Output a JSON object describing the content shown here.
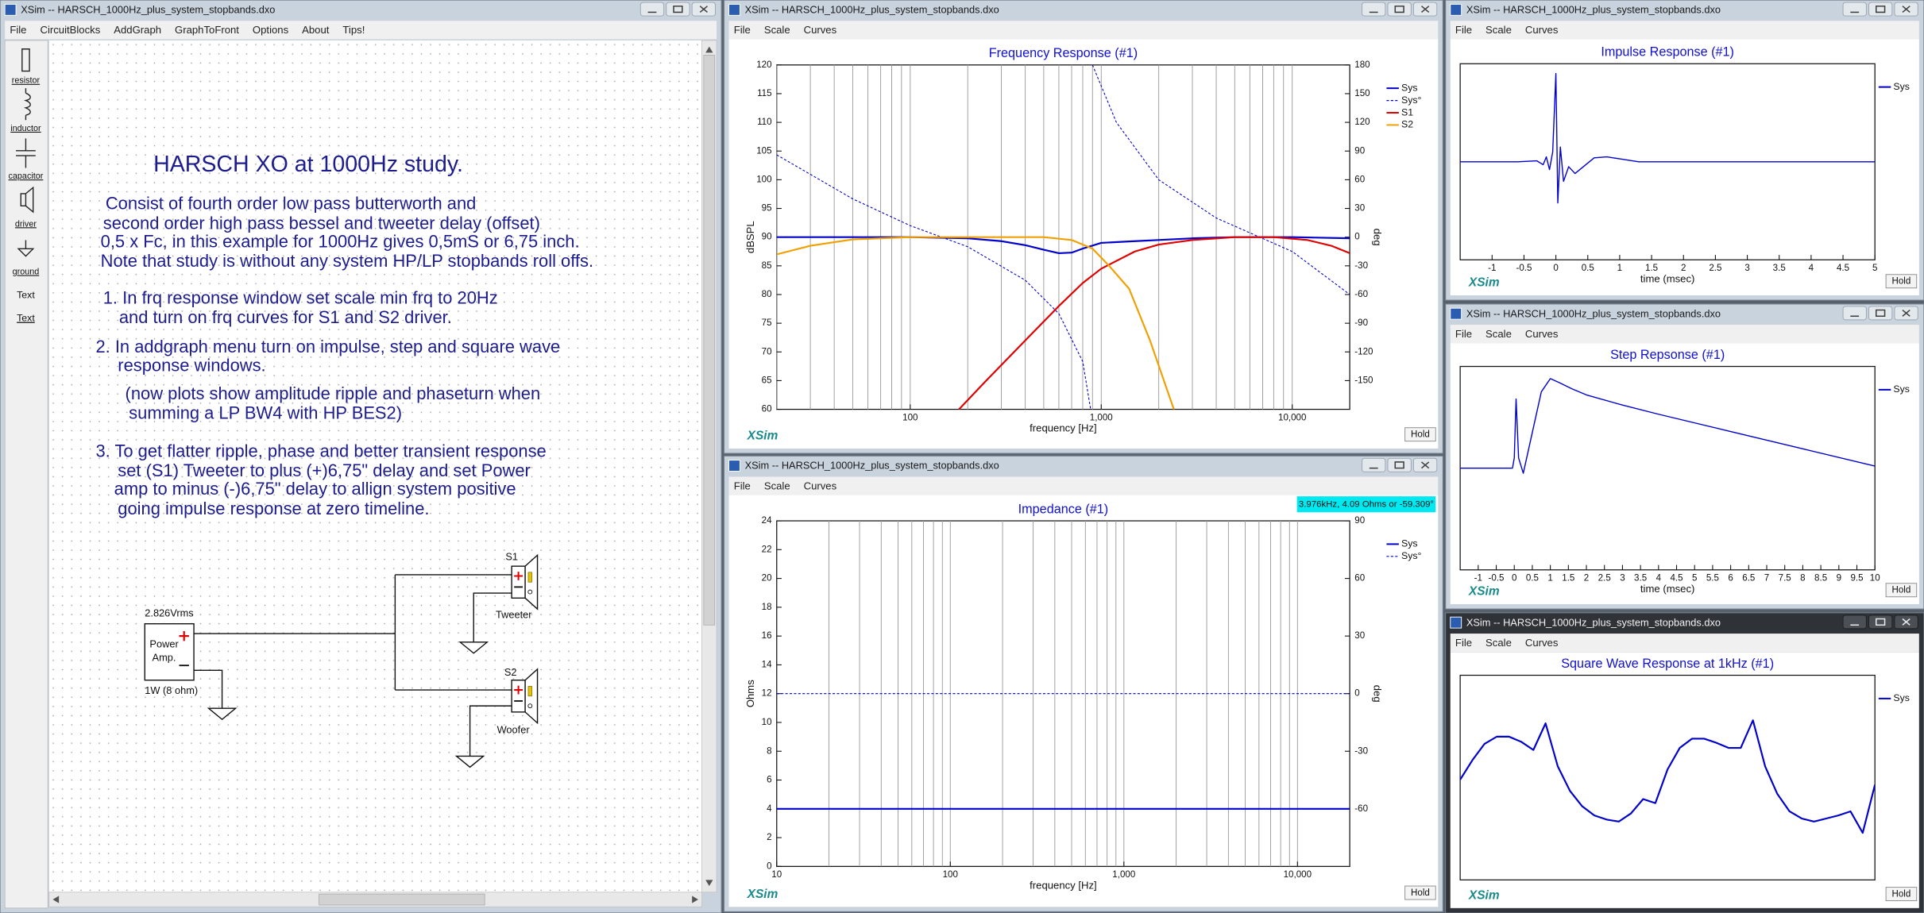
{
  "editor": {
    "title": "XSim -- HARSCH_1000Hz_plus_system_stopbands.dxo",
    "menu": [
      "File",
      "CircuitBlocks",
      "AddGraph",
      "GraphToFront",
      "Options",
      "About",
      "Tips!"
    ],
    "toolbox": [
      "resistor",
      "inductor",
      "capacitor",
      "driver",
      "ground",
      "Text",
      "Text"
    ],
    "heading": "HARSCH XO at 1000Hz study.",
    "notes": [
      "Consist of fourth order low pass butterworth and",
      "second order high pass bessel and tweeter delay (offset)",
      "0,5 x Fc, in this example for 1000Hz gives 0,5mS or 6,75 inch.",
      "Note that study is without any system HP/LP stopbands roll offs.",
      "1. In frq response window set scale min frq to 20Hz",
      "and turn on frq curves for S1 and S2 driver.",
      "2. In addgraph menu turn on impulse, step and square wave",
      "response windows.",
      "(now plots show amplitude ripple and phaseturn when",
      "summing a LP BW4 with HP BES2)",
      "3. To get flatter ripple, phase and better transient response",
      "set (S1) Tweeter to plus (+)6,75\" delay and set Power",
      "amp to minus (-)6,75\" delay to allign system positive",
      "going impulse response at zero timeline."
    ],
    "circuit": {
      "source": "2.826Vrms",
      "amp_line1": "Power",
      "amp_line2": "Amp.",
      "amp_rating": "1W (8 ohm)",
      "s1": "S1",
      "s1_name": "Tweeter",
      "s2": "S2",
      "s2_name": "Woofer"
    }
  },
  "graph_windows": [
    {
      "title": "XSim -- HARSCH_1000Hz_plus_system_stopbands.dxo",
      "menu": [
        "File",
        "Scale",
        "Curves"
      ],
      "brand": "XSim",
      "button": "Hold"
    },
    {
      "title": "XSim -- HARSCH_1000Hz_plus_system_stopbands.dxo",
      "menu": [
        "File",
        "Scale",
        "Curves"
      ],
      "brand": "XSim",
      "button": "Hold"
    },
    {
      "title": "XSim -- HARSCH_1000Hz_plus_system_stopbands.dxo",
      "menu": [
        "File",
        "Scale",
        "Curves"
      ],
      "brand": "XSim",
      "button": "Hold"
    },
    {
      "title": "XSim -- HARSCH_1000Hz_plus_system_stopbands.dxo",
      "menu": [
        "File",
        "Scale",
        "Curves"
      ],
      "brand": "XSim",
      "button": "Hold"
    },
    {
      "title": "XSim -- HARSCH_1000Hz_plus_system_stopbands.dxo",
      "menu": [
        "File",
        "Scale",
        "Curves"
      ],
      "brand": "XSim",
      "button": "Hold",
      "active": true
    }
  ],
  "chart_data": [
    {
      "type": "line",
      "title": "Frequency Response (#1)",
      "xlabel": "frequency [Hz]",
      "ylabel": "dBSPL",
      "y2label": "deg",
      "xscale": "log",
      "xlim": [
        20,
        20000
      ],
      "xticks": [
        100,
        {
          "value": 1000,
          "label": "1,000"
        },
        {
          "value": 10000,
          "label": "10,000"
        }
      ],
      "xgrid": [
        20,
        30,
        40,
        50,
        60,
        70,
        80,
        90,
        100,
        200,
        300,
        400,
        500,
        600,
        700,
        800,
        900,
        1000,
        2000,
        3000,
        4000,
        5000,
        6000,
        7000,
        8000,
        9000,
        10000
      ],
      "ylim": [
        60,
        120
      ],
      "yticks": [
        60,
        65,
        70,
        75,
        80,
        85,
        90,
        95,
        100,
        105,
        110,
        115,
        120
      ],
      "y2lim": [
        -180,
        180
      ],
      "y2ticks": [
        -150,
        -120,
        -90,
        -60,
        -30,
        0,
        30,
        60,
        90,
        120,
        150,
        180
      ],
      "series": [
        {
          "name": "Sys",
          "color": "#0000cc",
          "x": [
            20,
            50,
            100,
            200,
            300,
            400,
            500,
            600,
            700,
            800,
            1000,
            1500,
            2000,
            3000,
            5000,
            10000,
            20000
          ],
          "values": [
            90,
            90,
            90,
            89.8,
            89.3,
            88.6,
            87.8,
            87.2,
            87.3,
            88,
            89,
            89.3,
            89.5,
            89.8,
            90,
            90,
            89.8
          ]
        },
        {
          "name": "Sys°",
          "color": "#0000cc",
          "dashed": true,
          "axis": "y2",
          "x": [
            20,
            50,
            100,
            200,
            400,
            600,
            800,
            880,
            880,
            900,
            1200,
            2000,
            4000,
            10000,
            20000
          ],
          "values": [
            86,
            40,
            12,
            -10,
            -45,
            -80,
            -130,
            -180,
            null,
            180,
            120,
            60,
            20,
            -15,
            -60
          ]
        },
        {
          "name": "S1",
          "color": "#e00000",
          "x": [
            180,
            250,
            400,
            600,
            800,
            1000,
            1500,
            2000,
            3000,
            5000,
            8000,
            12000,
            16000,
            20000
          ],
          "values": [
            60,
            65,
            72,
            78,
            82,
            84.5,
            87.5,
            88.7,
            89.5,
            90,
            90,
            89.5,
            88.5,
            87.2
          ]
        },
        {
          "name": "S2",
          "color": "#f0a000",
          "x": [
            20,
            30,
            50,
            100,
            300,
            500,
            700,
            900,
            1100,
            1400,
            1800,
            2400
          ],
          "values": [
            87,
            88.5,
            89.6,
            90,
            90,
            90,
            89.5,
            88,
            85,
            81,
            72,
            60
          ]
        }
      ]
    },
    {
      "type": "line",
      "title": "Impedance (#1)",
      "xlabel": "frequency [Hz]",
      "ylabel": "Ohms",
      "y2label": "deg",
      "annotation": "3.976kHz, 4.09 Ohms or -59.309°",
      "xscale": "log",
      "xlim": [
        10,
        20000
      ],
      "xticks": [
        10,
        100,
        {
          "value": 1000,
          "label": "1,000"
        },
        {
          "value": 10000,
          "label": "10,000"
        }
      ],
      "xgrid": [
        20,
        30,
        40,
        50,
        60,
        70,
        80,
        90,
        100,
        200,
        300,
        400,
        500,
        600,
        700,
        800,
        900,
        1000,
        2000,
        3000,
        4000,
        5000,
        6000,
        7000,
        8000,
        9000,
        10000
      ],
      "ylim": [
        0,
        24
      ],
      "yticks": [
        0,
        2,
        4,
        6,
        8,
        10,
        12,
        14,
        16,
        18,
        20,
        22,
        24
      ],
      "y2lim": [
        -90,
        90
      ],
      "y2ticks": [
        -60,
        -30,
        0,
        30,
        60,
        90
      ],
      "series": [
        {
          "name": "Sys",
          "color": "#0000cc",
          "x": [
            10,
            20000
          ],
          "values": [
            4,
            4
          ]
        },
        {
          "name": "Sys°",
          "color": "#0000cc",
          "dashed": true,
          "axis": "y2",
          "x": [
            10,
            20000
          ],
          "values": [
            0,
            0
          ]
        }
      ]
    },
    {
      "type": "line",
      "title": "Impulse Response (#1)",
      "xlabel": "time (msec)",
      "xlim": [
        -1.5,
        5
      ],
      "xticks": [
        -1,
        -0.5,
        0,
        0.5,
        1,
        1.5,
        2,
        2.5,
        3,
        3.5,
        4,
        4.5,
        5
      ],
      "ylim": [
        -1,
        1
      ],
      "series": [
        {
          "name": "Sys",
          "color": "#0000cc",
          "x": [
            -1.5,
            -0.6,
            -0.3,
            -0.2,
            -0.15,
            -0.1,
            -0.05,
            0,
            0.03,
            0.07,
            0.12,
            0.2,
            0.3,
            0.45,
            0.6,
            0.8,
            1,
            1.3,
            5
          ],
          "values": [
            0,
            0,
            0.01,
            -0.03,
            0.05,
            -0.08,
            0.1,
            0.9,
            -0.42,
            0.15,
            -0.2,
            -0.05,
            -0.12,
            -0.04,
            0.04,
            0.05,
            0.03,
            0,
            0
          ]
        }
      ]
    },
    {
      "type": "line",
      "title": "Step Repsonse (#1)",
      "xlabel": "time (msec)",
      "xlim": [
        -1.5,
        10
      ],
      "xticks": [
        -1,
        -0.5,
        0,
        0.5,
        1,
        1.5,
        2,
        2.5,
        3,
        3.5,
        4,
        4.5,
        5,
        5.5,
        6,
        6.5,
        7,
        7.5,
        8,
        8.5,
        9,
        9.5,
        10
      ],
      "ylim": [
        -1,
        1
      ],
      "series": [
        {
          "name": "Sys",
          "color": "#0000cc",
          "x": [
            -1.5,
            -0.05,
            0,
            0.05,
            0.12,
            0.25,
            0.5,
            0.75,
            1,
            1.25,
            1.6,
            2,
            3,
            4,
            6,
            8,
            10
          ],
          "values": [
            0,
            0,
            0.1,
            0.68,
            0.1,
            -0.05,
            0.35,
            0.75,
            0.88,
            0.84,
            0.78,
            0.72,
            0.62,
            0.53,
            0.36,
            0.19,
            0.02
          ]
        }
      ]
    },
    {
      "type": "line",
      "title": "Square Wave Response at 1kHz (#1)",
      "ylim": [
        -1,
        1
      ],
      "series": [
        {
          "name": "Sys",
          "color": "#0000cc",
          "values": [
            -0.02,
            0.17,
            0.33,
            0.4,
            0.4,
            0.35,
            0.27,
            0.53,
            0.11,
            -0.13,
            -0.28,
            -0.37,
            -0.41,
            -0.43,
            -0.35,
            -0.21,
            -0.25,
            0.08,
            0.29,
            0.38,
            0.38,
            0.34,
            0.29,
            0.29,
            0.56,
            0.11,
            -0.16,
            -0.33,
            -0.4,
            -0.43,
            -0.4,
            -0.37,
            -0.33,
            -0.54,
            -0.07
          ]
        }
      ]
    }
  ]
}
